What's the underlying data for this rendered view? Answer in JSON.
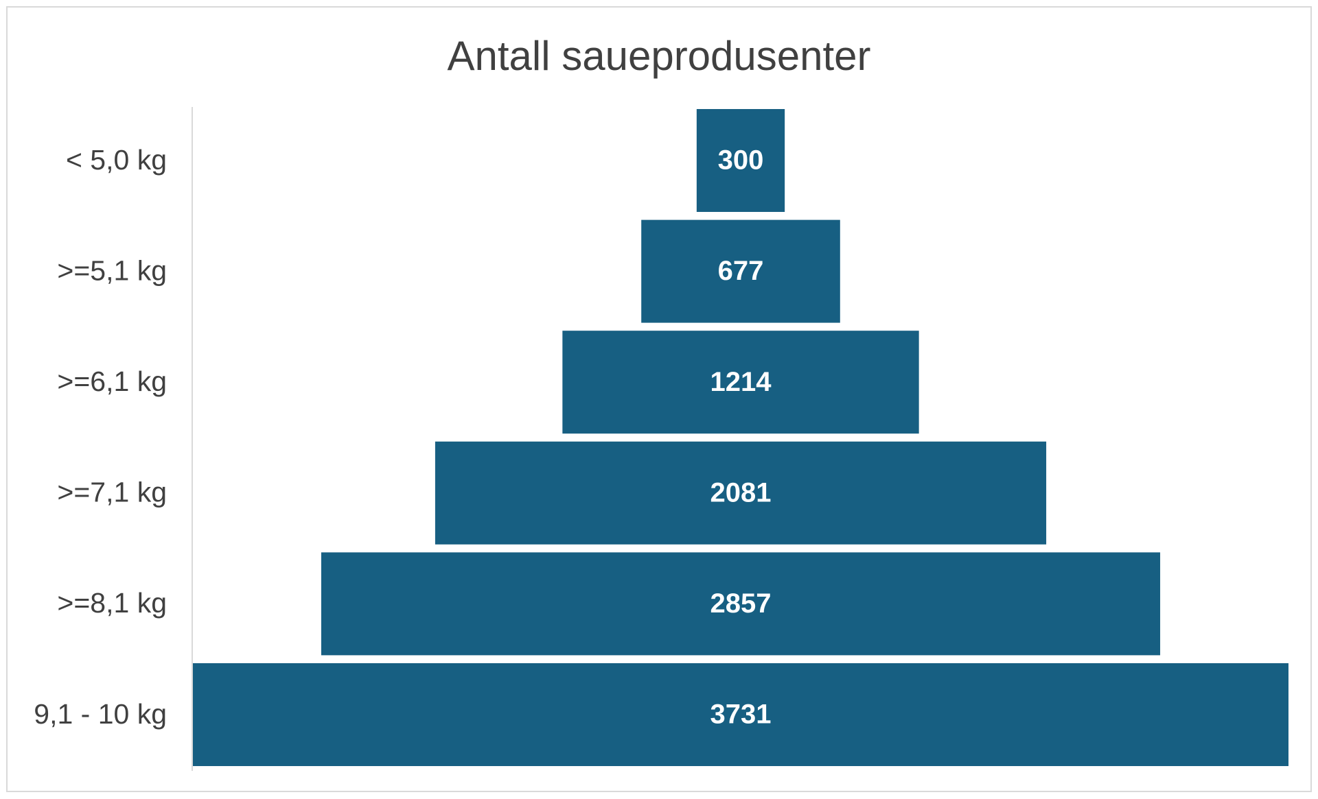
{
  "chart_data": {
    "type": "funnel",
    "title": "Antall saueprodusenter",
    "categories": [
      "< 5,0 kg",
      ">=5,1 kg",
      ">=6,1 kg",
      ">=7,1 kg",
      ">=8,1 kg",
      "9,1 - 10 kg"
    ],
    "values": [
      300,
      677,
      1214,
      2081,
      2857,
      3731
    ],
    "color": "#175f82"
  }
}
